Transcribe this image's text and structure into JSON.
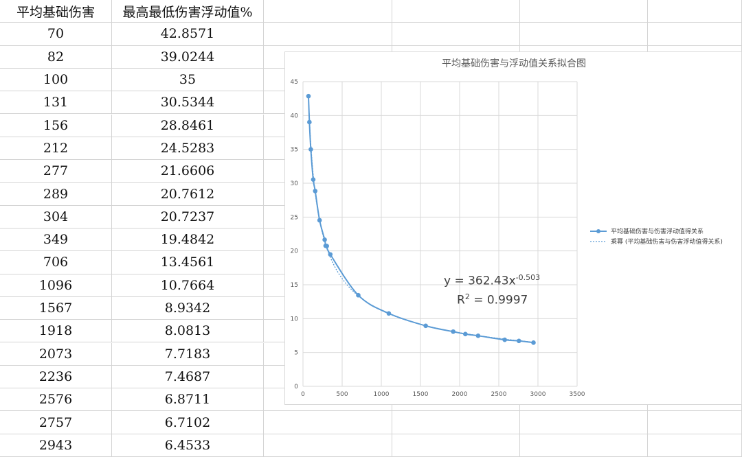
{
  "sheet": {
    "headers": [
      "平均基础伤害",
      "最高最低伤害浮动值%"
    ],
    "rows": [
      [
        "70",
        "42.8571"
      ],
      [
        "82",
        "39.0244"
      ],
      [
        "100",
        "35"
      ],
      [
        "131",
        "30.5344"
      ],
      [
        "156",
        "28.8461"
      ],
      [
        "212",
        "24.5283"
      ],
      [
        "277",
        "21.6606"
      ],
      [
        "289",
        "20.7612"
      ],
      [
        "304",
        "20.7237"
      ],
      [
        "349",
        "19.4842"
      ],
      [
        "706",
        "13.4561"
      ],
      [
        "1096",
        "10.7664"
      ],
      [
        "1567",
        "8.9342"
      ],
      [
        "1918",
        "8.0813"
      ],
      [
        "2073",
        "7.7183"
      ],
      [
        "2236",
        "7.4687"
      ],
      [
        "2576",
        "6.8711"
      ],
      [
        "2757",
        "6.7102"
      ],
      [
        "2943",
        "6.4533"
      ]
    ]
  },
  "chart_data": {
    "type": "scatter",
    "title": "平均基础伤害与浮动值关系拟合图",
    "xlim": [
      0,
      3500
    ],
    "ylim": [
      0,
      45
    ],
    "x_ticks": [
      0,
      500,
      1000,
      1500,
      2000,
      2500,
      3000,
      3500
    ],
    "y_ticks": [
      0,
      5,
      10,
      15,
      20,
      25,
      30,
      35,
      40,
      45
    ],
    "grid": true,
    "legend_position": "right",
    "series": [
      {
        "name": "平均基础伤害与伤害浮动值得关系",
        "color": "#5b9bd5",
        "x": [
          70,
          82,
          100,
          131,
          156,
          212,
          277,
          289,
          304,
          349,
          706,
          1096,
          1567,
          1918,
          2073,
          2236,
          2576,
          2757,
          2943
        ],
        "y": [
          42.8571,
          39.0244,
          35,
          30.5344,
          28.8461,
          24.5283,
          21.6606,
          20.7612,
          20.7237,
          19.4842,
          13.4561,
          10.7664,
          8.9342,
          8.0813,
          7.7183,
          7.4687,
          6.8711,
          6.7102,
          6.4533
        ]
      }
    ],
    "trendline": {
      "name": "乘幂 (平均基础伤害与伤害浮动值得关系)",
      "type": "power",
      "a": 362.43,
      "b": -0.503,
      "equation_base": "y = 362.43x",
      "equation_exp": "-0.503",
      "r2_base": "R",
      "r2_exp": "2",
      "r2_value": " = 0.9997"
    }
  }
}
